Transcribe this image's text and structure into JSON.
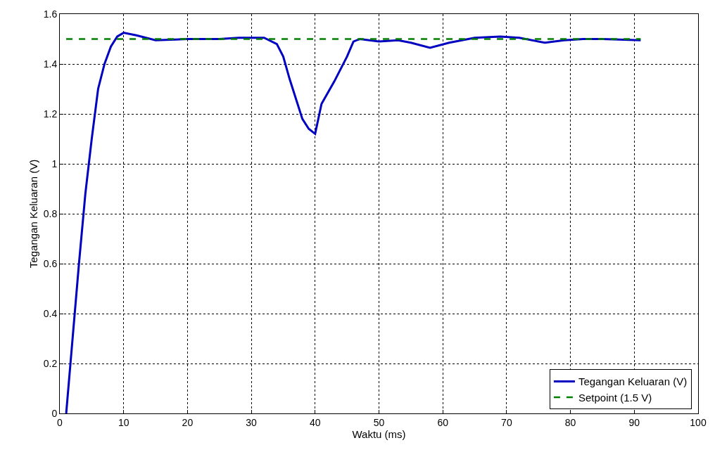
{
  "chart_data": {
    "type": "line",
    "xlabel": "Waktu (ms)",
    "ylabel": "Tegangan Keluaran (V)",
    "xlim": [
      0,
      100
    ],
    "xticks": [
      0,
      10,
      20,
      30,
      40,
      50,
      60,
      70,
      80,
      90,
      100
    ],
    "ylim": [
      0,
      1.6
    ],
    "yticks": [
      0,
      0.2,
      0.4,
      0.6,
      0.8,
      1,
      1.2,
      1.4,
      1.6
    ],
    "grid": true,
    "legend": "bottom right",
    "series": [
      {
        "name": "Tegangan Keluaran (V)",
        "color": "#0000c0",
        "line_style": "solid",
        "x": [
          1,
          2,
          3,
          4,
          5,
          6,
          7,
          8,
          9,
          10,
          12,
          15,
          20,
          25,
          28,
          32,
          34,
          35,
          36,
          37,
          38,
          39,
          40,
          41,
          43,
          45,
          46,
          47,
          50,
          53,
          55,
          58,
          61,
          65,
          69,
          72,
          76,
          79,
          82,
          85,
          91
        ],
        "values": [
          0,
          0.3,
          0.6,
          0.88,
          1.1,
          1.3,
          1.4,
          1.47,
          1.51,
          1.525,
          1.515,
          1.495,
          1.5,
          1.5,
          1.505,
          1.505,
          1.48,
          1.43,
          1.34,
          1.26,
          1.18,
          1.14,
          1.12,
          1.24,
          1.33,
          1.43,
          1.49,
          1.5,
          1.49,
          1.495,
          1.485,
          1.465,
          1.485,
          1.505,
          1.51,
          1.505,
          1.485,
          1.495,
          1.5,
          1.5,
          1.495
        ]
      },
      {
        "name": "Setpoint (1.5 V)",
        "color": "#008000",
        "line_style": "dashed",
        "x": [
          1,
          91
        ],
        "values": [
          1.5,
          1.5
        ]
      }
    ]
  }
}
